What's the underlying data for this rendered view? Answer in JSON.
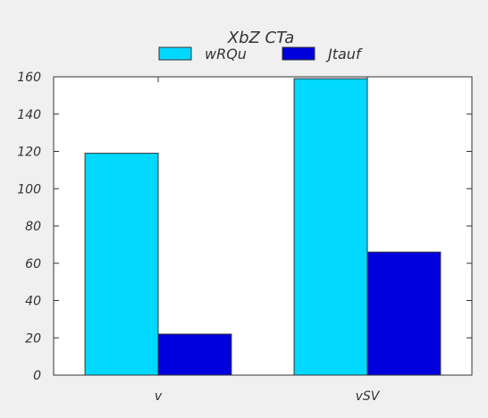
{
  "chart_data": {
    "type": "bar",
    "title": "XbZ CTa",
    "xlabel": "",
    "ylabel": "",
    "categories": [
      "v",
      "vSV"
    ],
    "series": [
      {
        "name": "wRQu",
        "color": "#00d8ff",
        "values": [
          119,
          159
        ]
      },
      {
        "name": "Jtauf",
        "color": "#0000dd",
        "values": [
          22,
          66
        ]
      }
    ],
    "ylim": [
      0,
      160
    ],
    "yticks": [
      0,
      20,
      40,
      60,
      80,
      100,
      120,
      140,
      160
    ],
    "grid": false,
    "legend": "top-center"
  },
  "colors": {
    "page_background": "#f0f0f0",
    "plot_background": "#ffffff",
    "axis": "#333333"
  }
}
